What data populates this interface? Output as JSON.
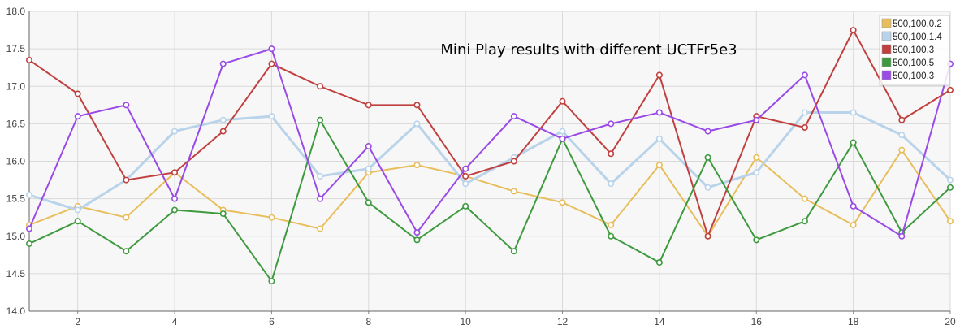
{
  "chart_data": {
    "type": "line",
    "title": "Mini Play results with different UCTFr5e3",
    "xlabel": "",
    "ylabel": "",
    "xlim": [
      1,
      20
    ],
    "ylim": [
      14.0,
      18.0
    ],
    "x": [
      1,
      2,
      3,
      4,
      5,
      6,
      7,
      8,
      9,
      10,
      11,
      12,
      13,
      14,
      15,
      16,
      17,
      18,
      19,
      20
    ],
    "x_ticks": [
      2,
      4,
      6,
      8,
      10,
      12,
      14,
      16,
      18,
      20
    ],
    "y_ticks": [
      14.0,
      14.5,
      15.0,
      15.5,
      16.0,
      16.5,
      17.0,
      17.5,
      18.0
    ],
    "grid": true,
    "legend_position": "top-right",
    "series": [
      {
        "name": "500,100,0.2",
        "color": "#e8be5c",
        "values": [
          15.15,
          15.4,
          15.25,
          15.85,
          15.35,
          15.25,
          15.1,
          15.85,
          15.95,
          15.8,
          15.6,
          15.45,
          15.15,
          15.95,
          15.0,
          16.05,
          15.5,
          15.15,
          16.15,
          15.2
        ]
      },
      {
        "name": "500,100,1.4",
        "color": "#b9d3ea",
        "values": [
          15.55,
          15.35,
          15.75,
          16.4,
          16.55,
          16.6,
          15.8,
          15.9,
          16.5,
          15.7,
          16.05,
          16.4,
          15.7,
          16.3,
          15.65,
          15.85,
          16.65,
          16.65,
          16.35,
          15.75
        ]
      },
      {
        "name": "500,100,3",
        "color": "#c0403f",
        "values": [
          17.35,
          16.9,
          15.75,
          15.85,
          16.4,
          17.3,
          17.0,
          16.75,
          16.75,
          15.8,
          16.0,
          16.8,
          16.1,
          17.15,
          15.0,
          16.6,
          16.45,
          17.75,
          16.55,
          16.95
        ]
      },
      {
        "name": "500,100,5",
        "color": "#3f9a3f",
        "values": [
          14.9,
          15.2,
          14.8,
          15.35,
          15.3,
          14.4,
          16.55,
          15.45,
          14.95,
          15.4,
          14.8,
          16.3,
          15.0,
          14.65,
          16.05,
          14.95,
          15.2,
          16.25,
          15.05,
          15.65
        ]
      },
      {
        "name": "500,100,3",
        "color": "#9a4ae6",
        "values": [
          15.1,
          16.6,
          16.75,
          15.5,
          17.3,
          17.5,
          15.5,
          16.2,
          15.05,
          15.9,
          16.6,
          16.3,
          16.5,
          16.65,
          16.4,
          16.55,
          17.15,
          15.4,
          15.0,
          17.3
        ]
      }
    ]
  }
}
